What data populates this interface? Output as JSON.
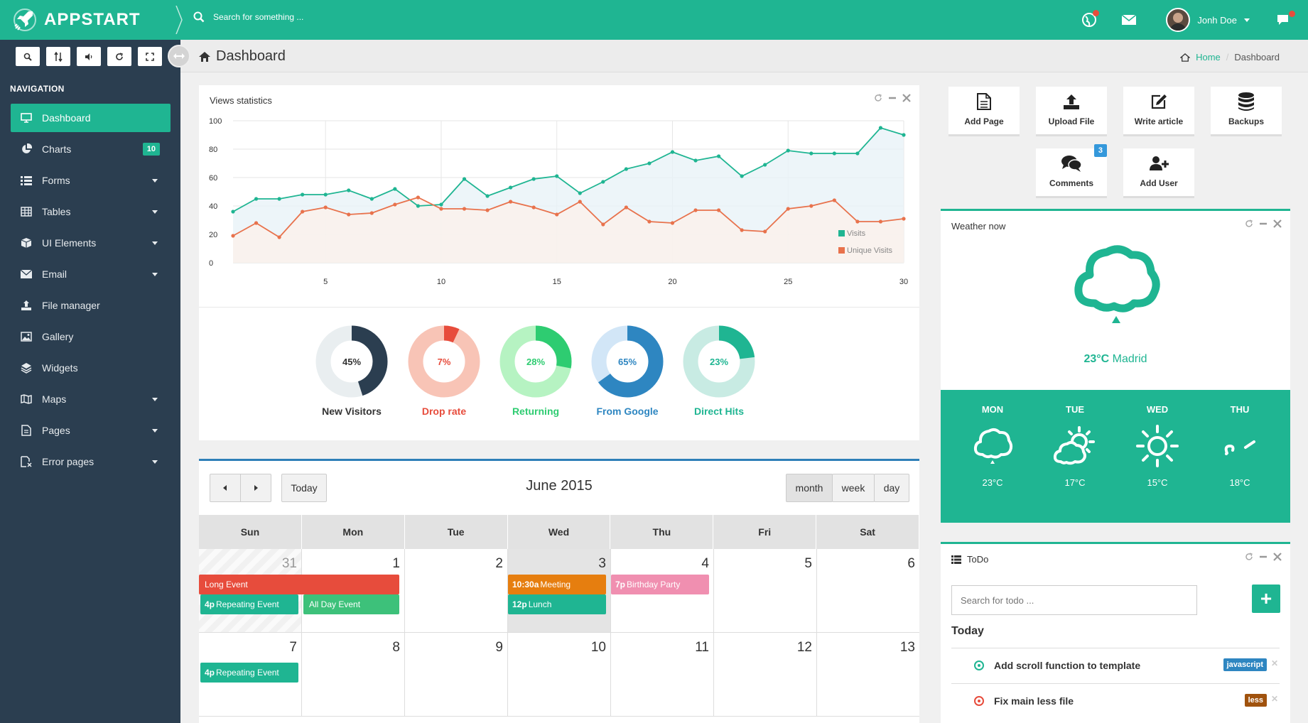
{
  "app": {
    "brand": "APPSTART"
  },
  "topbar": {
    "search_placeholder": "Search for something ...",
    "user_name": "Jonh Doe"
  },
  "sidebar": {
    "nav_title": "NAVIGATION",
    "items": [
      {
        "label": "Dashboard",
        "icon": "monitor-icon",
        "active": true
      },
      {
        "label": "Charts",
        "icon": "pie-chart-icon",
        "badge": "10"
      },
      {
        "label": "Forms",
        "icon": "list-icon",
        "caret": true
      },
      {
        "label": "Tables",
        "icon": "table-icon",
        "caret": true
      },
      {
        "label": "UI Elements",
        "icon": "cube-icon",
        "caret": true
      },
      {
        "label": "Email",
        "icon": "envelope-icon",
        "caret": true
      },
      {
        "label": "File manager",
        "icon": "upload-icon"
      },
      {
        "label": "Gallery",
        "icon": "image-icon"
      },
      {
        "label": "Widgets",
        "icon": "layers-icon"
      },
      {
        "label": "Maps",
        "icon": "map-icon",
        "caret": true
      },
      {
        "label": "Pages",
        "icon": "page-icon",
        "caret": true
      },
      {
        "label": "Error pages",
        "icon": "error-page-icon",
        "caret": true
      }
    ]
  },
  "header": {
    "title": "Dashboard",
    "breadcrumb": [
      "Home",
      "Dashboard"
    ]
  },
  "views_panel": {
    "title": "Views statistics",
    "chart_data": {
      "type": "area",
      "x": [
        1,
        2,
        3,
        4,
        5,
        6,
        7,
        8,
        9,
        10,
        11,
        12,
        13,
        14,
        15,
        16,
        17,
        18,
        19,
        20,
        21,
        22,
        23,
        24,
        25,
        26,
        27,
        28,
        29,
        30
      ],
      "series": [
        {
          "name": "Visits",
          "color": "#1fb592",
          "values": [
            36,
            45,
            45,
            48,
            48,
            51,
            45,
            52,
            40,
            41,
            59,
            47,
            53,
            59,
            61,
            49,
            57,
            66,
            70,
            78,
            72,
            75,
            61,
            69,
            79,
            77,
            77,
            77,
            95,
            90
          ]
        },
        {
          "name": "Unique Visits",
          "color": "#e8724c",
          "values": [
            19,
            28,
            18,
            36,
            39,
            34,
            35,
            41,
            46,
            38,
            38,
            37,
            43,
            39,
            34,
            43,
            27,
            39,
            29,
            28,
            37,
            37,
            23,
            22,
            38,
            40,
            44,
            29,
            29,
            31
          ]
        }
      ],
      "ylim": [
        0,
        100
      ],
      "yticks": [
        0,
        20,
        40,
        60,
        80,
        100
      ],
      "xticks": [
        5,
        10,
        15,
        20,
        25,
        30
      ],
      "legend": "bottom-right",
      "grid": true
    },
    "donuts": [
      {
        "value": 45,
        "text": "45%",
        "label": "New Visitors",
        "color": "#2b3e50",
        "track": "#e9eef0",
        "text_color": "#333333"
      },
      {
        "value": 7,
        "text": "7%",
        "label": "Drop rate",
        "color": "#e74c3c",
        "track": "#f8c4b6",
        "text_color": "#e74c3c"
      },
      {
        "value": 28,
        "text": "28%",
        "label": "Returning",
        "color": "#2ecc71",
        "track": "#b6f3c2",
        "text_color": "#2ecc71"
      },
      {
        "value": 65,
        "text": "65%",
        "label": "From Google",
        "color": "#2e86c1",
        "track": "#d2e6f7",
        "text_color": "#2e86c1"
      },
      {
        "value": 23,
        "text": "23%",
        "label": "Direct Hits",
        "color": "#1fb592",
        "track": "#c8ebe3",
        "text_color": "#1fb592"
      }
    ]
  },
  "calendar": {
    "title": "June 2015",
    "today_label": "Today",
    "views": [
      "month",
      "week",
      "day"
    ],
    "weekdays": [
      "Sun",
      "Mon",
      "Tue",
      "Wed",
      "Thu",
      "Fri",
      "Sat"
    ],
    "weeks": [
      [
        "31",
        "1",
        "2",
        "3",
        "4",
        "5",
        "6"
      ],
      [
        "7",
        "8",
        "9",
        "10",
        "11",
        "12",
        "13"
      ]
    ],
    "events": [
      {
        "time": "",
        "title": "Long Event",
        "color": "#e74c3c"
      },
      {
        "time": "4p",
        "title": "Repeating Event",
        "color": "#1fb592"
      },
      {
        "time": "",
        "title": "All Day Event",
        "color": "#3dc17a"
      },
      {
        "time": "10:30a",
        "title": "Meeting",
        "color": "#e67e0f"
      },
      {
        "time": "12p",
        "title": "Lunch",
        "color": "#1fb592"
      },
      {
        "time": "7p",
        "title": "Birthday Party",
        "color": "#f08fb0"
      },
      {
        "time": "4p",
        "title": "Repeating Event",
        "color": "#1fb592"
      }
    ]
  },
  "quick_actions": [
    {
      "label": "Add Page",
      "icon": "file-text-icon"
    },
    {
      "label": "Upload File",
      "icon": "upload-icon"
    },
    {
      "label": "Write article",
      "icon": "edit-icon"
    },
    {
      "label": "Backups",
      "icon": "database-icon"
    },
    {
      "label": "Comments",
      "icon": "comments-icon",
      "badge": "3"
    },
    {
      "label": "Add User",
      "icon": "add-user-icon"
    }
  ],
  "weather": {
    "title": "Weather now",
    "temp": "23°C",
    "city": "Madrid",
    "forecast": [
      {
        "day": "MON",
        "temp": "23°C",
        "icon": "cloud-icon"
      },
      {
        "day": "TUE",
        "temp": "17°C",
        "icon": "partly-cloudy-icon"
      },
      {
        "day": "WED",
        "temp": "15°C",
        "icon": "sun-icon"
      },
      {
        "day": "THU",
        "temp": "18°C",
        "icon": "wind-icon"
      }
    ]
  },
  "todo": {
    "title": "ToDo",
    "search_placeholder": "Search for todo ...",
    "add_label": "+",
    "heading": "Today",
    "items": [
      {
        "text": "Add scroll function to template",
        "tag": "javascript",
        "tag_color": "#2e86c1",
        "check_color": "#1fb592"
      },
      {
        "text": "Fix main less file",
        "tag": "less",
        "tag_color": "#a0520d",
        "check_color": "#e74c3c"
      }
    ]
  }
}
